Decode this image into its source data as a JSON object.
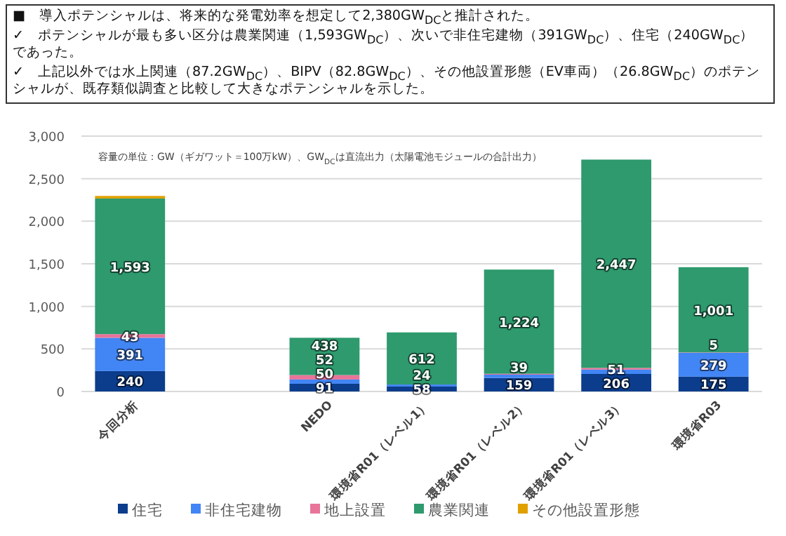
{
  "chart_data": {
    "type": "bar",
    "stacked": true,
    "annotations": [
      "■　導入ポテンシャルは、将来的な発電効率を想定して2,380GW$_{DC}$と推計された。",
      "✓　ポテンシャルが最も多い区分は農業関連（1,593GW$_{DC}$）、次いで非住宅建物（391GW$_{DC}$）、住宅（240GW$_{DC}$）であった。",
      "✓　上記以外では水上関連（87.2GW$_{DC}$）、BIPV（82.8GW$_{DC}$）、その他設置形態（EV車両）（26.8GW$_{DC}$）のポテンシャルが、既存類似調査と比較して大きなポテンシャルを示した。"
    ],
    "subtitle": "容量の単位：GW（ギガワット＝100万kW）、GW$_{DC}$は直流出力（太陽電池モジュールの合計出力）",
    "categories": [
      "今回分析",
      null,
      "NEDO",
      "環境省R01（レベル1）",
      "環境省R01（レベル2）",
      "環境省R01（レベル3）",
      "環境省R03"
    ],
    "series": [
      {
        "name": "住宅",
        "color": "#0b3d8c",
        "values": [
          240,
          null,
          91,
          58,
          159,
          206,
          175
        ],
        "value_labels": [
          "240",
          null,
          "91",
          "58",
          "159",
          "206",
          "175"
        ]
      },
      {
        "name": "非住宅建物",
        "color": "#4285f4",
        "values": [
          391,
          null,
          50,
          24,
          39,
          51,
          279
        ],
        "value_labels": [
          "391",
          null,
          "50",
          "24",
          "39",
          "51",
          "279"
        ]
      },
      {
        "name": "地上設置",
        "color": "#e8749a",
        "values": [
          43,
          null,
          52,
          0,
          10,
          20,
          5
        ],
        "value_labels": [
          "43",
          null,
          "52",
          null,
          null,
          null,
          "5"
        ]
      },
      {
        "name": "農業関連",
        "color": "#2e9a6e",
        "values": [
          1593,
          null,
          438,
          612,
          1224,
          2447,
          1001
        ],
        "value_labels": [
          "1,593",
          null,
          "438",
          "612",
          "1,224",
          "2,447",
          "1,001"
        ]
      },
      {
        "name": "その他設置形態",
        "color": "#e0a000",
        "values": [
          30,
          null,
          0,
          0,
          0,
          0,
          0
        ],
        "value_labels": [
          null,
          null,
          null,
          null,
          null,
          null,
          null
        ]
      }
    ],
    "ylim": [
      0,
      3000
    ],
    "yticks": [
      0,
      500,
      {
        "value": 1000,
        "label": "1,000"
      },
      {
        "value": 1500,
        "label": "1,500"
      },
      {
        "value": 2000,
        "label": "2,000"
      },
      {
        "value": 2500,
        "label": "2,500"
      },
      {
        "value": 3000,
        "label": "3,000"
      }
    ],
    "grid": "y",
    "legend": "bottom"
  }
}
